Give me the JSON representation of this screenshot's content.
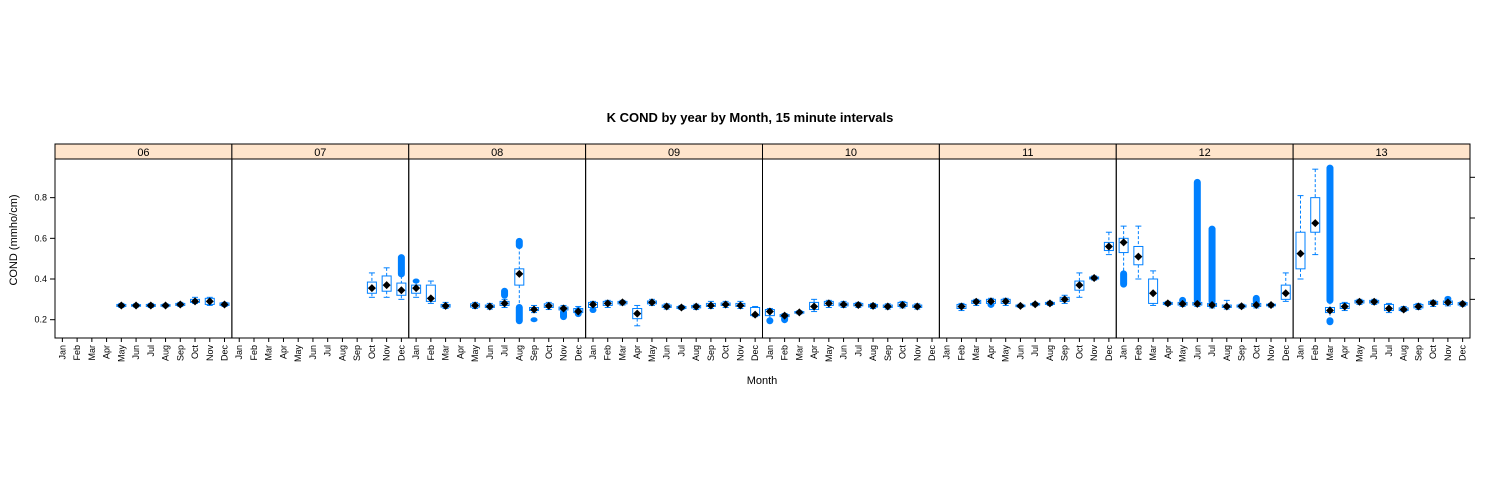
{
  "chart_data": {
    "type": "box",
    "title": "K COND by year by Month, 15 minute intervals",
    "xlabel": "Month",
    "ylabel": "COND (mmho/cm)",
    "yticks": [
      0.2,
      0.4,
      0.6,
      0.8
    ],
    "ylim": [
      0.11,
      0.99
    ],
    "months": [
      "Jan",
      "Feb",
      "Mar",
      "Apr",
      "May",
      "Jun",
      "Jul",
      "Aug",
      "Sep",
      "Oct",
      "Nov",
      "Dec"
    ],
    "colors": {
      "box": "#0080ff",
      "median": "#000000",
      "strip": "#ffe5cc",
      "border": "#000000"
    },
    "panels": [
      {
        "label": "06",
        "boxes": [
          {
            "m": 4,
            "q1": 0.265,
            "med": 0.27,
            "q3": 0.275,
            "lo": 0.26,
            "hi": 0.28
          },
          {
            "m": 5,
            "q1": 0.266,
            "med": 0.27,
            "q3": 0.274,
            "lo": 0.262,
            "hi": 0.278
          },
          {
            "m": 6,
            "q1": 0.265,
            "med": 0.27,
            "q3": 0.275,
            "lo": 0.26,
            "hi": 0.28
          },
          {
            "m": 7,
            "q1": 0.266,
            "med": 0.27,
            "q3": 0.274,
            "lo": 0.262,
            "hi": 0.278
          },
          {
            "m": 8,
            "q1": 0.27,
            "med": 0.275,
            "q3": 0.28,
            "lo": 0.265,
            "hi": 0.285
          },
          {
            "m": 9,
            "q1": 0.285,
            "med": 0.29,
            "q3": 0.3,
            "lo": 0.28,
            "hi": 0.31
          },
          {
            "m": 10,
            "q1": 0.275,
            "med": 0.29,
            "q3": 0.305,
            "lo": 0.27,
            "hi": 0.31
          },
          {
            "m": 11,
            "q1": 0.27,
            "med": 0.275,
            "q3": 0.282,
            "lo": 0.265,
            "hi": 0.285
          }
        ]
      },
      {
        "label": "07",
        "boxes": [
          {
            "m": 9,
            "q1": 0.33,
            "med": 0.355,
            "q3": 0.385,
            "lo": 0.31,
            "hi": 0.43
          },
          {
            "m": 10,
            "q1": 0.34,
            "med": 0.37,
            "q3": 0.415,
            "lo": 0.31,
            "hi": 0.455
          },
          {
            "m": 11,
            "q1": 0.32,
            "med": 0.345,
            "q3": 0.38,
            "lo": 0.3,
            "hi": 0.44,
            "outHi": [
              0.42,
              0.51
            ]
          }
        ]
      },
      {
        "label": "08",
        "boxes": [
          {
            "m": 0,
            "q1": 0.33,
            "med": 0.355,
            "q3": 0.37,
            "lo": 0.31,
            "hi": 0.385,
            "outHi": [
              0.39,
              0.39
            ]
          },
          {
            "m": 1,
            "q1": 0.29,
            "med": 0.305,
            "q3": 0.37,
            "lo": 0.28,
            "hi": 0.39
          },
          {
            "m": 2,
            "q1": 0.262,
            "med": 0.268,
            "q3": 0.275,
            "lo": 0.255,
            "hi": 0.285
          },
          {
            "m": 4,
            "q1": 0.262,
            "med": 0.27,
            "q3": 0.278,
            "lo": 0.255,
            "hi": 0.285
          },
          {
            "m": 5,
            "q1": 0.26,
            "med": 0.265,
            "q3": 0.272,
            "lo": 0.252,
            "hi": 0.28
          },
          {
            "m": 6,
            "q1": 0.27,
            "med": 0.28,
            "q3": 0.29,
            "lo": 0.26,
            "hi": 0.3,
            "outHi": [
              0.315,
              0.345
            ]
          },
          {
            "m": 7,
            "q1": 0.37,
            "med": 0.425,
            "q3": 0.45,
            "lo": 0.22,
            "hi": 0.56,
            "outHi": [
              0.56,
              0.59
            ],
            "outLo": [
              0.19,
              0.265
            ]
          },
          {
            "m": 8,
            "q1": 0.245,
            "med": 0.25,
            "q3": 0.26,
            "lo": 0.235,
            "hi": 0.27,
            "outLo": [
              0.2,
              0.2
            ]
          },
          {
            "m": 9,
            "q1": 0.26,
            "med": 0.268,
            "q3": 0.278,
            "lo": 0.25,
            "hi": 0.285
          },
          {
            "m": 10,
            "q1": 0.248,
            "med": 0.255,
            "q3": 0.262,
            "lo": 0.24,
            "hi": 0.27,
            "outLo": [
              0.21,
              0.24
            ]
          },
          {
            "m": 11,
            "q1": 0.235,
            "med": 0.24,
            "q3": 0.255,
            "lo": 0.225,
            "hi": 0.265,
            "outLo": [
              0.225,
              0.25
            ]
          }
        ]
      },
      {
        "label": "09",
        "boxes": [
          {
            "m": 0,
            "q1": 0.26,
            "med": 0.275,
            "q3": 0.285,
            "lo": 0.245,
            "hi": 0.29,
            "outLo": [
              0.245,
              0.25
            ]
          },
          {
            "m": 1,
            "q1": 0.27,
            "med": 0.28,
            "q3": 0.29,
            "lo": 0.26,
            "hi": 0.295
          },
          {
            "m": 2,
            "q1": 0.278,
            "med": 0.285,
            "q3": 0.29,
            "lo": 0.272,
            "hi": 0.295
          },
          {
            "m": 3,
            "q1": 0.205,
            "med": 0.23,
            "q3": 0.255,
            "lo": 0.17,
            "hi": 0.27
          },
          {
            "m": 4,
            "q1": 0.278,
            "med": 0.285,
            "q3": 0.292,
            "lo": 0.27,
            "hi": 0.3
          },
          {
            "m": 5,
            "q1": 0.26,
            "med": 0.265,
            "q3": 0.272,
            "lo": 0.252,
            "hi": 0.278
          },
          {
            "m": 6,
            "q1": 0.255,
            "med": 0.26,
            "q3": 0.265,
            "lo": 0.25,
            "hi": 0.27
          },
          {
            "m": 7,
            "q1": 0.258,
            "med": 0.264,
            "q3": 0.27,
            "lo": 0.25,
            "hi": 0.276
          },
          {
            "m": 8,
            "q1": 0.265,
            "med": 0.27,
            "q3": 0.28,
            "lo": 0.255,
            "hi": 0.29
          },
          {
            "m": 9,
            "q1": 0.27,
            "med": 0.275,
            "q3": 0.282,
            "lo": 0.26,
            "hi": 0.29
          },
          {
            "m": 10,
            "q1": 0.265,
            "med": 0.27,
            "q3": 0.28,
            "lo": 0.255,
            "hi": 0.29
          },
          {
            "m": 11,
            "q1": 0.22,
            "med": 0.225,
            "q3": 0.26,
            "lo": 0.215,
            "hi": 0.265
          }
        ]
      },
      {
        "label": "10",
        "boxes": [
          {
            "m": 0,
            "q1": 0.22,
            "med": 0.24,
            "q3": 0.25,
            "lo": 0.2,
            "hi": 0.255,
            "outLo": [
              0.19,
              0.2
            ]
          },
          {
            "m": 1,
            "q1": 0.215,
            "med": 0.22,
            "q3": 0.225,
            "lo": 0.2,
            "hi": 0.23,
            "outLo": [
              0.195,
              0.21
            ]
          },
          {
            "m": 2,
            "q1": 0.232,
            "med": 0.236,
            "q3": 0.24,
            "lo": 0.228,
            "hi": 0.244
          },
          {
            "m": 3,
            "q1": 0.25,
            "med": 0.265,
            "q3": 0.285,
            "lo": 0.24,
            "hi": 0.3
          },
          {
            "m": 4,
            "q1": 0.27,
            "med": 0.28,
            "q3": 0.29,
            "lo": 0.26,
            "hi": 0.295
          },
          {
            "m": 5,
            "q1": 0.268,
            "med": 0.275,
            "q3": 0.282,
            "lo": 0.26,
            "hi": 0.29
          },
          {
            "m": 6,
            "q1": 0.268,
            "med": 0.272,
            "q3": 0.28,
            "lo": 0.26,
            "hi": 0.285
          },
          {
            "m": 7,
            "q1": 0.262,
            "med": 0.268,
            "q3": 0.275,
            "lo": 0.255,
            "hi": 0.28
          },
          {
            "m": 8,
            "q1": 0.26,
            "med": 0.265,
            "q3": 0.272,
            "lo": 0.252,
            "hi": 0.278
          },
          {
            "m": 9,
            "q1": 0.265,
            "med": 0.272,
            "q3": 0.285,
            "lo": 0.258,
            "hi": 0.29
          },
          {
            "m": 10,
            "q1": 0.26,
            "med": 0.265,
            "q3": 0.272,
            "lo": 0.252,
            "hi": 0.278
          }
        ]
      },
      {
        "label": "11",
        "boxes": [
          {
            "m": 1,
            "q1": 0.255,
            "med": 0.265,
            "q3": 0.275,
            "lo": 0.245,
            "hi": 0.28
          },
          {
            "m": 2,
            "q1": 0.28,
            "med": 0.288,
            "q3": 0.295,
            "lo": 0.27,
            "hi": 0.3
          },
          {
            "m": 3,
            "q1": 0.28,
            "med": 0.29,
            "q3": 0.3,
            "lo": 0.27,
            "hi": 0.305,
            "outLo": [
              0.27,
              0.28
            ]
          },
          {
            "m": 4,
            "q1": 0.28,
            "med": 0.29,
            "q3": 0.3,
            "lo": 0.27,
            "hi": 0.305
          },
          {
            "m": 5,
            "q1": 0.264,
            "med": 0.268,
            "q3": 0.272,
            "lo": 0.26,
            "hi": 0.276
          },
          {
            "m": 6,
            "q1": 0.272,
            "med": 0.276,
            "q3": 0.28,
            "lo": 0.268,
            "hi": 0.284
          },
          {
            "m": 7,
            "q1": 0.275,
            "med": 0.28,
            "q3": 0.285,
            "lo": 0.27,
            "hi": 0.29
          },
          {
            "m": 8,
            "q1": 0.29,
            "med": 0.3,
            "q3": 0.31,
            "lo": 0.28,
            "hi": 0.32
          },
          {
            "m": 9,
            "q1": 0.345,
            "med": 0.37,
            "q3": 0.39,
            "lo": 0.31,
            "hi": 0.43
          },
          {
            "m": 10,
            "q1": 0.4,
            "med": 0.405,
            "q3": 0.41,
            "lo": 0.395,
            "hi": 0.415
          },
          {
            "m": 11,
            "q1": 0.54,
            "med": 0.56,
            "q3": 0.58,
            "lo": 0.52,
            "hi": 0.63
          }
        ]
      },
      {
        "label": "12",
        "boxes": [
          {
            "m": 0,
            "q1": 0.53,
            "med": 0.58,
            "q3": 0.6,
            "lo": 0.43,
            "hi": 0.66,
            "outLo": [
              0.37,
              0.43
            ]
          },
          {
            "m": 1,
            "q1": 0.47,
            "med": 0.51,
            "q3": 0.56,
            "lo": 0.4,
            "hi": 0.66
          },
          {
            "m": 2,
            "q1": 0.28,
            "med": 0.33,
            "q3": 0.4,
            "lo": 0.27,
            "hi": 0.44
          },
          {
            "m": 3,
            "q1": 0.275,
            "med": 0.28,
            "q3": 0.285,
            "lo": 0.27,
            "hi": 0.29
          },
          {
            "m": 4,
            "q1": 0.272,
            "med": 0.278,
            "q3": 0.285,
            "lo": 0.265,
            "hi": 0.29,
            "outHi": [
              0.29,
              0.3
            ]
          },
          {
            "m": 5,
            "q1": 0.272,
            "med": 0.278,
            "q3": 0.285,
            "lo": 0.265,
            "hi": 0.29,
            "outHi": [
              0.29,
              0.88
            ]
          },
          {
            "m": 6,
            "q1": 0.265,
            "med": 0.272,
            "q3": 0.28,
            "lo": 0.258,
            "hi": 0.285,
            "outHi": [
              0.285,
              0.65
            ]
          },
          {
            "m": 7,
            "q1": 0.26,
            "med": 0.265,
            "q3": 0.272,
            "lo": 0.252,
            "hi": 0.295
          },
          {
            "m": 8,
            "q1": 0.262,
            "med": 0.266,
            "q3": 0.272,
            "lo": 0.256,
            "hi": 0.276
          },
          {
            "m": 9,
            "q1": 0.265,
            "med": 0.272,
            "q3": 0.28,
            "lo": 0.258,
            "hi": 0.285,
            "outHi": [
              0.285,
              0.31
            ]
          },
          {
            "m": 10,
            "q1": 0.268,
            "med": 0.272,
            "q3": 0.276,
            "lo": 0.262,
            "hi": 0.28
          },
          {
            "m": 11,
            "q1": 0.3,
            "med": 0.33,
            "q3": 0.37,
            "lo": 0.29,
            "hi": 0.43
          }
        ]
      },
      {
        "label": "13",
        "boxes": [
          {
            "m": 0,
            "q1": 0.45,
            "med": 0.525,
            "q3": 0.63,
            "lo": 0.4,
            "hi": 0.81
          },
          {
            "m": 1,
            "q1": 0.63,
            "med": 0.675,
            "q3": 0.8,
            "lo": 0.52,
            "hi": 0.94
          },
          {
            "m": 2,
            "q1": 0.235,
            "med": 0.245,
            "q3": 0.26,
            "lo": 0.2,
            "hi": 0.29,
            "outHi": [
              0.29,
              0.95
            ],
            "outLo": [
              0.185,
              0.2
            ]
          },
          {
            "m": 3,
            "q1": 0.255,
            "med": 0.265,
            "q3": 0.28,
            "lo": 0.245,
            "hi": 0.285
          },
          {
            "m": 4,
            "q1": 0.282,
            "med": 0.288,
            "q3": 0.295,
            "lo": 0.275,
            "hi": 0.3
          },
          {
            "m": 5,
            "q1": 0.282,
            "med": 0.288,
            "q3": 0.295,
            "lo": 0.275,
            "hi": 0.3
          },
          {
            "m": 6,
            "q1": 0.245,
            "med": 0.255,
            "q3": 0.275,
            "lo": 0.235,
            "hi": 0.28
          },
          {
            "m": 7,
            "q1": 0.245,
            "med": 0.25,
            "q3": 0.258,
            "lo": 0.24,
            "hi": 0.265
          },
          {
            "m": 8,
            "q1": 0.258,
            "med": 0.265,
            "q3": 0.275,
            "lo": 0.25,
            "hi": 0.28
          },
          {
            "m": 9,
            "q1": 0.275,
            "med": 0.282,
            "q3": 0.29,
            "lo": 0.265,
            "hi": 0.295
          },
          {
            "m": 10,
            "q1": 0.275,
            "med": 0.285,
            "q3": 0.292,
            "lo": 0.268,
            "hi": 0.3,
            "outHi": [
              0.3,
              0.305
            ]
          },
          {
            "m": 11,
            "q1": 0.272,
            "med": 0.278,
            "q3": 0.284,
            "lo": 0.266,
            "hi": 0.288
          }
        ]
      }
    ]
  }
}
